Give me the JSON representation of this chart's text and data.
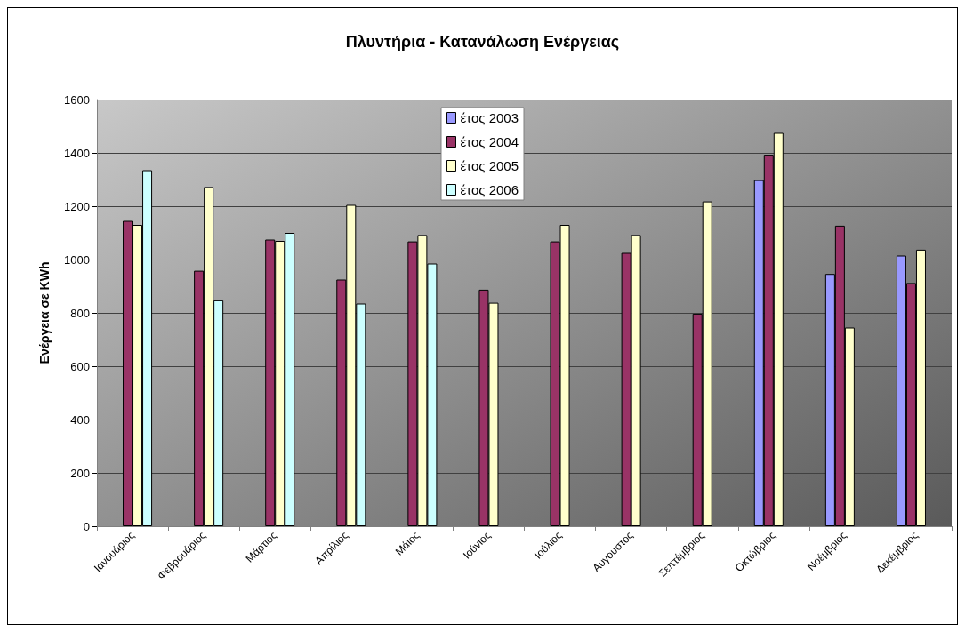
{
  "chart_data": {
    "type": "bar",
    "title": "Πλυντήρια - Κατανάλωση Ενέργειας",
    "ylabel": "Ενέργεια σε KWh",
    "categories": [
      "Ιανουάριος",
      "Φεβρουάριος",
      "Μάρτιος",
      "Απρίλιος",
      "Μάιος",
      "Ιούνιος",
      "Ιούλιος",
      "Αυγουστος",
      "Σεπτέμβριος",
      "Οκτώβριος",
      "Νοέμβριος",
      "Δεκέμβριος"
    ],
    "series": [
      {
        "name": "έτος 2003",
        "color": "#9999ff",
        "values": [
          null,
          null,
          null,
          null,
          null,
          null,
          null,
          null,
          null,
          1298,
          946,
          1015
        ]
      },
      {
        "name": "έτος 2004",
        "color": "#993366",
        "values": [
          1145,
          958,
          1075,
          925,
          1068,
          887,
          1068,
          1025,
          797,
          1393,
          1127,
          912
        ]
      },
      {
        "name": "έτος 2005",
        "color": "#ffffcc",
        "values": [
          1130,
          1272,
          1070,
          1205,
          1092,
          838,
          1130,
          1092,
          1218,
          1475,
          745,
          1037
        ]
      },
      {
        "name": "έτος 2006",
        "color": "#ccffff",
        "values": [
          1335,
          847,
          1100,
          835,
          985,
          null,
          null,
          null,
          null,
          null,
          null,
          null
        ]
      }
    ],
    "ylim": [
      0,
      1600
    ],
    "yticks": [
      0,
      200,
      400,
      600,
      800,
      1000,
      1200,
      1400,
      1600
    ],
    "grid": "y",
    "legend": "top"
  }
}
